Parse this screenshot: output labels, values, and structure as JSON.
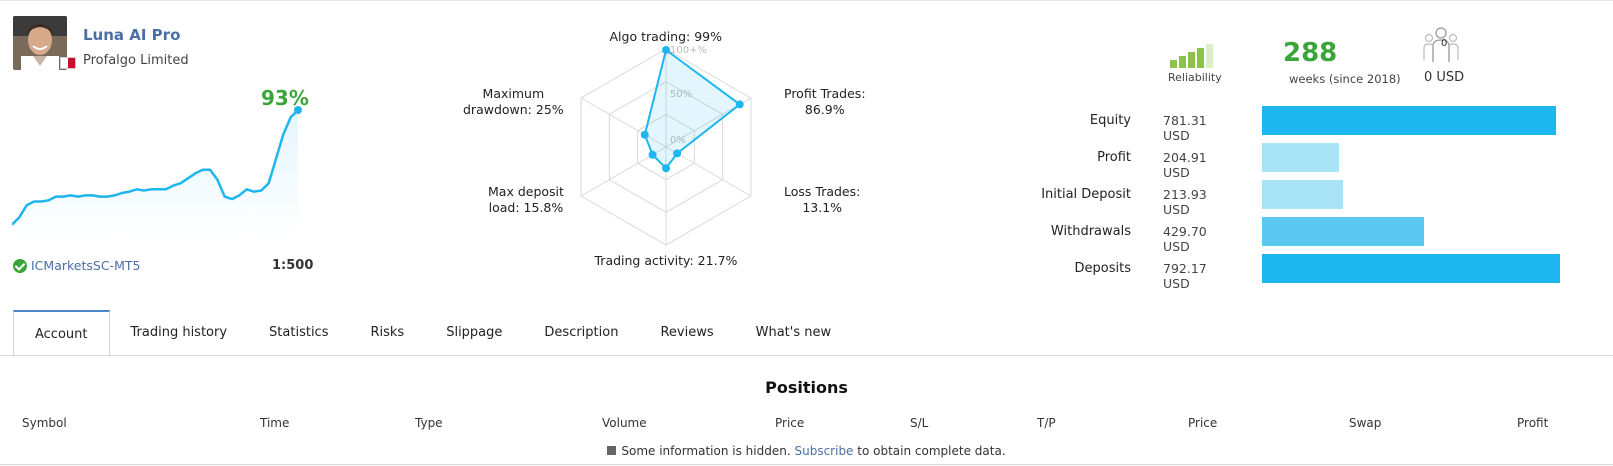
{
  "signal": {
    "name": "Luna AI Pro",
    "company": "Profalgo Limited",
    "growth": "93%",
    "broker": "ICMarketsSC-MT5",
    "leverage": "1:500",
    "growth_curve": [
      0.06,
      0.12,
      0.22,
      0.25,
      0.25,
      0.26,
      0.29,
      0.29,
      0.3,
      0.29,
      0.3,
      0.3,
      0.29,
      0.29,
      0.3,
      0.32,
      0.33,
      0.35,
      0.34,
      0.35,
      0.35,
      0.35,
      0.38,
      0.4,
      0.44,
      0.48,
      0.51,
      0.51,
      0.43,
      0.29,
      0.27,
      0.3,
      0.35,
      0.33,
      0.34,
      0.4,
      0.6,
      0.8,
      0.94,
      1.0
    ]
  },
  "radar": {
    "grid_labels": [
      "100+%",
      "50%",
      "0%"
    ],
    "axes": [
      {
        "label": "Algo trading: 99%",
        "value": 0.99
      },
      {
        "label": "Profit Trades:\n86.9%",
        "value": 0.869
      },
      {
        "label": "Loss Trades:\n13.1%",
        "value": 0.131
      },
      {
        "label": "Trading activity: 21.7%",
        "value": 0.217
      },
      {
        "label": "Max deposit\nload: 15.8%",
        "value": 0.158
      },
      {
        "label": "Maximum\ndrawdown: 25%",
        "value": 0.25
      }
    ]
  },
  "stats": {
    "reliability_label": "Reliability",
    "weeks": "288",
    "weeks_label": "weeks (since 2018)",
    "subscribers_count": "0",
    "subscribers_usd": "0 USD"
  },
  "finance": [
    {
      "label": "Equity",
      "value": "781.31 USD",
      "amount": 781.31,
      "color": "#1eb6ee"
    },
    {
      "label": "Profit",
      "value": "204.91 USD",
      "amount": 204.91,
      "color": "#a9e3f7"
    },
    {
      "label": "Initial Deposit",
      "value": "213.93 USD",
      "amount": 213.93,
      "color": "#a9e3f7"
    },
    {
      "label": "Withdrawals",
      "value": "429.70 USD",
      "amount": 429.7,
      "color": "#5cc8f2"
    },
    {
      "label": "Deposits",
      "value": "792.17 USD",
      "amount": 792.17,
      "color": "#1eb6ee"
    }
  ],
  "tabs": [
    "Account",
    "Trading history",
    "Statistics",
    "Risks",
    "Slippage",
    "Description",
    "Reviews",
    "What's new"
  ],
  "positions": {
    "title": "Positions",
    "columns": [
      "Symbol",
      "Time",
      "Type",
      "Volume",
      "Price",
      "S/L",
      "T/P",
      "Price",
      "Swap",
      "Profit"
    ],
    "note_prefix": "Some information is hidden.",
    "note_link": "Subscribe",
    "note_suffix": "to obtain complete data."
  },
  "colors": {
    "accent_green": "#3aa53a",
    "link_blue": "#4a6ea5",
    "chart_blue": "#1eb6ee"
  }
}
